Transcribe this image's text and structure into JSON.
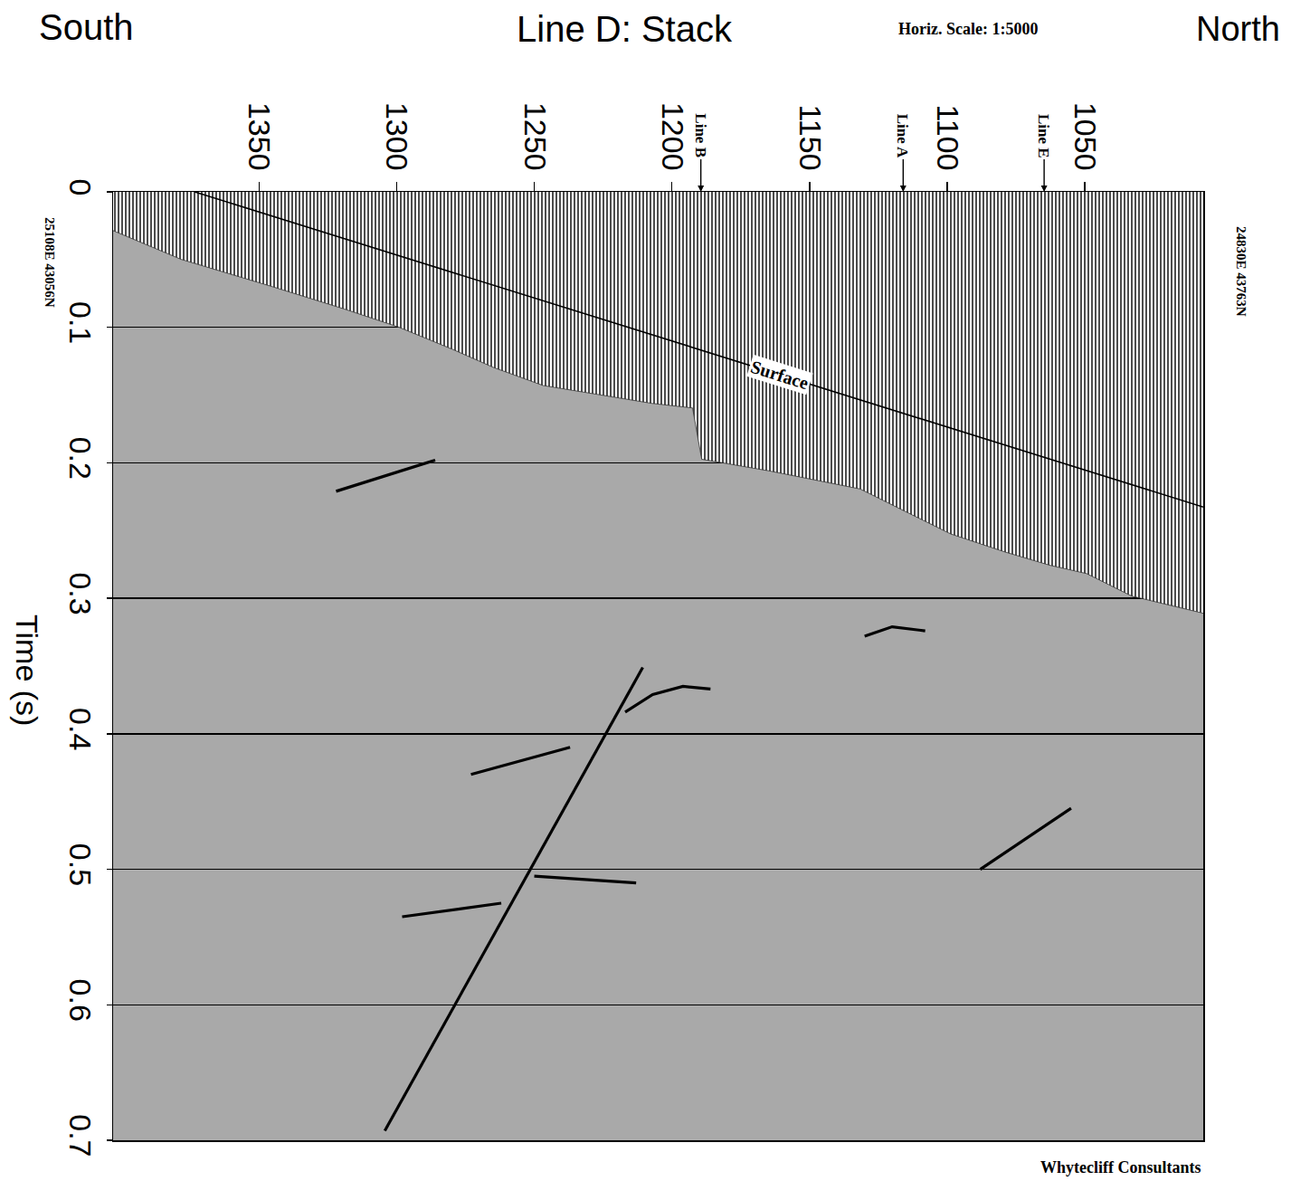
{
  "chart_data": {
    "type": "line",
    "title": "Line D: Stack",
    "subtitle": "Horiz. Scale: 1:5000",
    "y_label": "Time (s)",
    "left_label": "South",
    "right_label": "North",
    "left_coords": "25108E 43056N",
    "right_coords": "24830E 43763N",
    "credit": "Whytecliff Consultants",
    "markers": [
      {
        "label": "Line B",
        "x": 1189.5
      },
      {
        "label": "Line A",
        "x": 1116
      },
      {
        "label": "Line E",
        "x": 1064.8
      }
    ],
    "xlim": [
      1403,
      1007
    ],
    "xticks": [
      1350,
      1300,
      1250,
      1200,
      1150,
      1100,
      1050
    ],
    "ylim": [
      0,
      0.7
    ],
    "yticks": [
      0,
      0.1,
      0.2,
      0.3,
      0.4,
      0.5,
      0.6,
      0.7
    ],
    "grid": "y",
    "series": [
      {
        "type": "area",
        "color": "#ffffff",
        "x": [
          1403,
          1378.3,
          1345.4,
          1319.1,
          1299.4,
          1279.6,
          1264.8,
          1246.8,
          1227.0,
          1207.3,
          1192.5,
          1189.2,
          1164.5,
          1131.6,
          1115.2,
          1098.7,
          1079.0,
          1062.5,
          1049.4,
          1033.0,
          1007
        ],
        "values": [
          0.0286,
          0.0498,
          0.0698,
          0.0864,
          0.0997,
          0.1163,
          0.1296,
          0.1429,
          0.1495,
          0.1561,
          0.1595,
          0.1973,
          0.206,
          0.2193,
          0.2359,
          0.2525,
          0.2658,
          0.2757,
          0.2817,
          0.2983,
          0.311
        ]
      },
      {
        "name": "Surface",
        "type": "line",
        "color": "#000000",
        "line_style": "solid",
        "x": [
          1373.4,
          1007
        ],
        "values": [
          0,
          0.2326
        ]
      },
      {
        "type": "line",
        "color": "#000000",
        "line_style": "solid",
        "x": [
          1304.3,
          1210.6
        ],
        "values": [
          0.693,
          0.351
        ]
      },
      {
        "type": "line",
        "color": "#000000",
        "line_style": "solid",
        "x": [
          1217,
          1207,
          1196,
          1186
        ],
        "values": [
          0.384,
          0.371,
          0.365,
          0.367
        ]
      },
      {
        "type": "line",
        "color": "#000000",
        "line_style": "solid",
        "x": [
          1130,
          1120,
          1108
        ],
        "values": [
          0.328,
          0.321,
          0.324
        ]
      },
      {
        "type": "line",
        "color": "#000000",
        "line_style": "solid",
        "x": [
          1298,
          1262
        ],
        "values": [
          0.535,
          0.525
        ]
      },
      {
        "type": "line",
        "color": "#000000",
        "line_style": "solid",
        "x": [
          1250,
          1213
        ],
        "values": [
          0.505,
          0.51
        ]
      },
      {
        "type": "line",
        "color": "#000000",
        "line_style": "solid",
        "x": [
          1273,
          1237
        ],
        "values": [
          0.43,
          0.41
        ]
      },
      {
        "type": "line",
        "color": "#000000",
        "line_style": "solid",
        "x": [
          1088,
          1055
        ],
        "values": [
          0.5,
          0.455
        ]
      },
      {
        "type": "line",
        "color": "#000000",
        "line_style": "solid",
        "x": [
          1322,
          1286
        ],
        "values": [
          0.221,
          0.198
        ]
      }
    ]
  }
}
